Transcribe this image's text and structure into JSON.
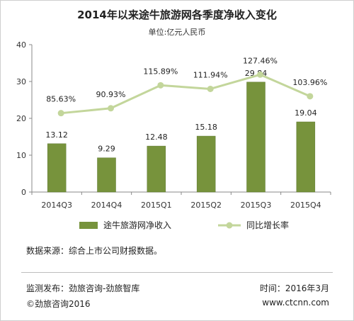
{
  "chart_data": {
    "type": "bar",
    "title": "2014年以来途牛旅游网各季度净收入变化",
    "subtitle": "单位:亿元人民币",
    "categories": [
      "2014Q3",
      "2014Q4",
      "2015Q1",
      "2015Q2",
      "2015Q3",
      "2015Q4"
    ],
    "series": [
      {
        "name": "途牛旅游网净收入",
        "type": "bar",
        "values": [
          13.12,
          9.29,
          12.48,
          15.18,
          29.84,
          19.04
        ],
        "labels": [
          "13.12",
          "9.29",
          "12.48",
          "15.18",
          "29.84",
          "19.04"
        ],
        "color": "#77933c"
      },
      {
        "name": "同比增长率",
        "type": "line",
        "values": [
          85.63,
          90.93,
          115.89,
          111.94,
          127.46,
          103.96
        ],
        "labels": [
          "85.63%",
          "90.93%",
          "115.89%",
          "111.94%",
          "127.46%",
          "103.96%"
        ],
        "color": "#c3d69b"
      }
    ],
    "y_ticks": [
      "0",
      "10",
      "20",
      "30",
      "40"
    ],
    "ylim": [
      0,
      40
    ],
    "grid": false,
    "legend_position": "bottom"
  },
  "footer": {
    "source": "数据来源：综合上市公司财报数据。",
    "publisher": "监测发布：劲旅咨询-劲旅智库",
    "copyright": "©劲旅咨询2016",
    "time": "时间：2016年3月",
    "website": "www.ctcnn.com"
  }
}
